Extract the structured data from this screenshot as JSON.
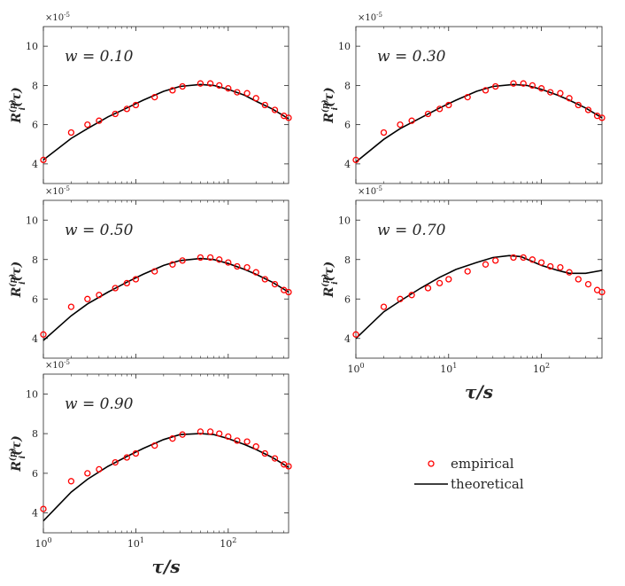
{
  "chart_data": [
    {
      "type": "scatter+line",
      "annotation": "w = 0.10",
      "ylabel": "R_i^(p)(τ)",
      "xlabel": "",
      "xscale": "log",
      "xlim": [
        1,
        450
      ],
      "ylim": [
        3,
        11
      ],
      "y_multiplier": "×10^-5",
      "yticks": [
        4,
        6,
        8,
        10
      ],
      "xticks": [
        {
          "value": 1,
          "base": "10",
          "exp": "0"
        },
        {
          "value": 10,
          "base": "10",
          "exp": "1"
        },
        {
          "value": 100,
          "base": "10",
          "exp": "2"
        }
      ],
      "series": [
        {
          "name": "empirical",
          "style": "circle",
          "color": "#ff0000",
          "x": [
            1,
            2,
            3,
            4,
            6,
            8,
            10,
            16,
            25,
            32,
            50,
            64,
            80,
            100,
            125,
            160,
            200,
            250,
            320,
            400,
            450
          ],
          "y": [
            4.2,
            5.6,
            6.0,
            6.2,
            6.55,
            6.8,
            7.0,
            7.4,
            7.75,
            7.95,
            8.1,
            8.1,
            8.0,
            7.85,
            7.65,
            7.6,
            7.35,
            7.0,
            6.75,
            6.45,
            6.35
          ]
        },
        {
          "name": "theoretical",
          "style": "line",
          "color": "#000000",
          "x": [
            1,
            2,
            3,
            5,
            8,
            12,
            20,
            30,
            50,
            70,
            100,
            150,
            200,
            300,
            450
          ],
          "y": [
            4.2,
            5.3,
            5.8,
            6.4,
            6.85,
            7.25,
            7.7,
            7.95,
            8.05,
            8.0,
            7.8,
            7.5,
            7.2,
            6.8,
            6.3
          ]
        }
      ]
    },
    {
      "type": "scatter+line",
      "annotation": "w = 0.30",
      "ylabel": "R_i^(p)(τ)",
      "xlabel": "",
      "xscale": "log",
      "xlim": [
        1,
        450
      ],
      "ylim": [
        3,
        11
      ],
      "y_multiplier": "×10^-5",
      "yticks": [
        4,
        6,
        8,
        10
      ],
      "xticks": [
        {
          "value": 1,
          "base": "10",
          "exp": "0"
        },
        {
          "value": 10,
          "base": "10",
          "exp": "1"
        },
        {
          "value": 100,
          "base": "10",
          "exp": "2"
        }
      ],
      "series": [
        {
          "name": "empirical",
          "style": "circle",
          "color": "#ff0000",
          "x": [
            1,
            2,
            3,
            4,
            6,
            8,
            10,
            16,
            25,
            32,
            50,
            64,
            80,
            100,
            125,
            160,
            200,
            250,
            320,
            400,
            450
          ],
          "y": [
            4.2,
            5.6,
            6.0,
            6.2,
            6.55,
            6.8,
            7.0,
            7.4,
            7.75,
            7.95,
            8.1,
            8.1,
            8.0,
            7.85,
            7.65,
            7.6,
            7.35,
            7.0,
            6.75,
            6.45,
            6.35
          ]
        },
        {
          "name": "theoretical",
          "style": "line",
          "color": "#000000",
          "x": [
            1,
            2,
            3,
            5,
            8,
            12,
            20,
            30,
            50,
            70,
            100,
            150,
            200,
            300,
            450
          ],
          "y": [
            4.1,
            5.25,
            5.8,
            6.35,
            6.85,
            7.25,
            7.7,
            7.95,
            8.05,
            8.0,
            7.8,
            7.5,
            7.25,
            6.85,
            6.35
          ]
        }
      ]
    },
    {
      "type": "scatter+line",
      "annotation": "w = 0.50",
      "ylabel": "R_i^(p)(τ)",
      "xlabel": "",
      "xscale": "log",
      "xlim": [
        1,
        450
      ],
      "ylim": [
        3,
        11
      ],
      "y_multiplier": "×10^-5",
      "yticks": [
        4,
        6,
        8,
        10
      ],
      "xticks": [
        {
          "value": 1,
          "base": "10",
          "exp": "0"
        },
        {
          "value": 10,
          "base": "10",
          "exp": "1"
        },
        {
          "value": 100,
          "base": "10",
          "exp": "2"
        }
      ],
      "series": [
        {
          "name": "empirical",
          "style": "circle",
          "color": "#ff0000",
          "x": [
            1,
            2,
            3,
            4,
            6,
            8,
            10,
            16,
            25,
            32,
            50,
            64,
            80,
            100,
            125,
            160,
            200,
            250,
            320,
            400,
            450
          ],
          "y": [
            4.2,
            5.6,
            6.0,
            6.2,
            6.55,
            6.8,
            7.0,
            7.4,
            7.75,
            7.95,
            8.1,
            8.1,
            8.0,
            7.85,
            7.65,
            7.6,
            7.35,
            7.0,
            6.75,
            6.45,
            6.35
          ]
        },
        {
          "name": "theoretical",
          "style": "line",
          "color": "#000000",
          "x": [
            1,
            2,
            3,
            5,
            8,
            12,
            20,
            30,
            50,
            70,
            100,
            150,
            200,
            300,
            450
          ],
          "y": [
            3.9,
            5.15,
            5.75,
            6.35,
            6.85,
            7.25,
            7.7,
            7.95,
            8.05,
            8.0,
            7.8,
            7.5,
            7.25,
            6.85,
            6.35
          ]
        }
      ]
    },
    {
      "type": "scatter+line",
      "annotation": "w = 0.70",
      "ylabel": "R_i^(p)(τ)",
      "xlabel": "τ/s",
      "xscale": "log",
      "xlim": [
        1,
        450
      ],
      "ylim": [
        3,
        11
      ],
      "y_multiplier": "×10^-5",
      "yticks": [
        4,
        6,
        8,
        10
      ],
      "xticks": [
        {
          "value": 1,
          "base": "10",
          "exp": "0"
        },
        {
          "value": 10,
          "base": "10",
          "exp": "1"
        },
        {
          "value": 100,
          "base": "10",
          "exp": "2"
        }
      ],
      "series": [
        {
          "name": "empirical",
          "style": "circle",
          "color": "#ff0000",
          "x": [
            1,
            2,
            3,
            4,
            6,
            8,
            10,
            16,
            25,
            32,
            50,
            64,
            80,
            100,
            125,
            160,
            200,
            250,
            320,
            400,
            450
          ],
          "y": [
            4.2,
            5.6,
            6.0,
            6.2,
            6.55,
            6.8,
            7.0,
            7.4,
            7.75,
            7.95,
            8.1,
            8.1,
            8.0,
            7.85,
            7.65,
            7.6,
            7.35,
            7.0,
            6.75,
            6.45,
            6.35
          ]
        },
        {
          "name": "theoretical",
          "style": "line",
          "color": "#000000",
          "x": [
            1,
            2,
            3,
            5,
            8,
            12,
            20,
            30,
            45,
            60,
            80,
            100,
            150,
            200,
            300,
            450
          ],
          "y": [
            4.0,
            5.35,
            5.9,
            6.55,
            7.1,
            7.5,
            7.85,
            8.1,
            8.2,
            8.15,
            7.9,
            7.7,
            7.45,
            7.3,
            7.3,
            7.45
          ]
        }
      ]
    },
    {
      "type": "scatter+line",
      "annotation": "w = 0.90",
      "ylabel": "R_i^(p)(τ)",
      "xlabel": "τ/s",
      "xscale": "log",
      "xlim": [
        1,
        450
      ],
      "ylim": [
        3,
        11
      ],
      "y_multiplier": "×10^-5",
      "yticks": [
        4,
        6,
        8,
        10
      ],
      "xticks": [
        {
          "value": 1,
          "base": "10",
          "exp": "0"
        },
        {
          "value": 10,
          "base": "10",
          "exp": "1"
        },
        {
          "value": 100,
          "base": "10",
          "exp": "2"
        }
      ],
      "series": [
        {
          "name": "empirical",
          "style": "circle",
          "color": "#ff0000",
          "x": [
            1,
            2,
            3,
            4,
            6,
            8,
            10,
            16,
            25,
            32,
            50,
            64,
            80,
            100,
            125,
            160,
            200,
            250,
            320,
            400,
            450
          ],
          "y": [
            4.2,
            5.6,
            6.0,
            6.2,
            6.55,
            6.8,
            7.0,
            7.4,
            7.75,
            7.95,
            8.1,
            8.1,
            8.0,
            7.85,
            7.65,
            7.6,
            7.35,
            7.0,
            6.75,
            6.45,
            6.35
          ]
        },
        {
          "name": "theoretical",
          "style": "line",
          "color": "#000000",
          "x": [
            1,
            2,
            3,
            5,
            8,
            12,
            20,
            30,
            50,
            70,
            100,
            150,
            200,
            300,
            450
          ],
          "y": [
            3.6,
            5.05,
            5.7,
            6.35,
            6.85,
            7.25,
            7.7,
            7.95,
            8.0,
            7.95,
            7.75,
            7.45,
            7.2,
            6.8,
            6.3
          ]
        }
      ]
    }
  ],
  "legend": {
    "entries": [
      {
        "label": "empirical",
        "style": "circle",
        "color": "#ff0000"
      },
      {
        "label": "theoretical",
        "style": "line",
        "color": "#000000"
      }
    ]
  }
}
